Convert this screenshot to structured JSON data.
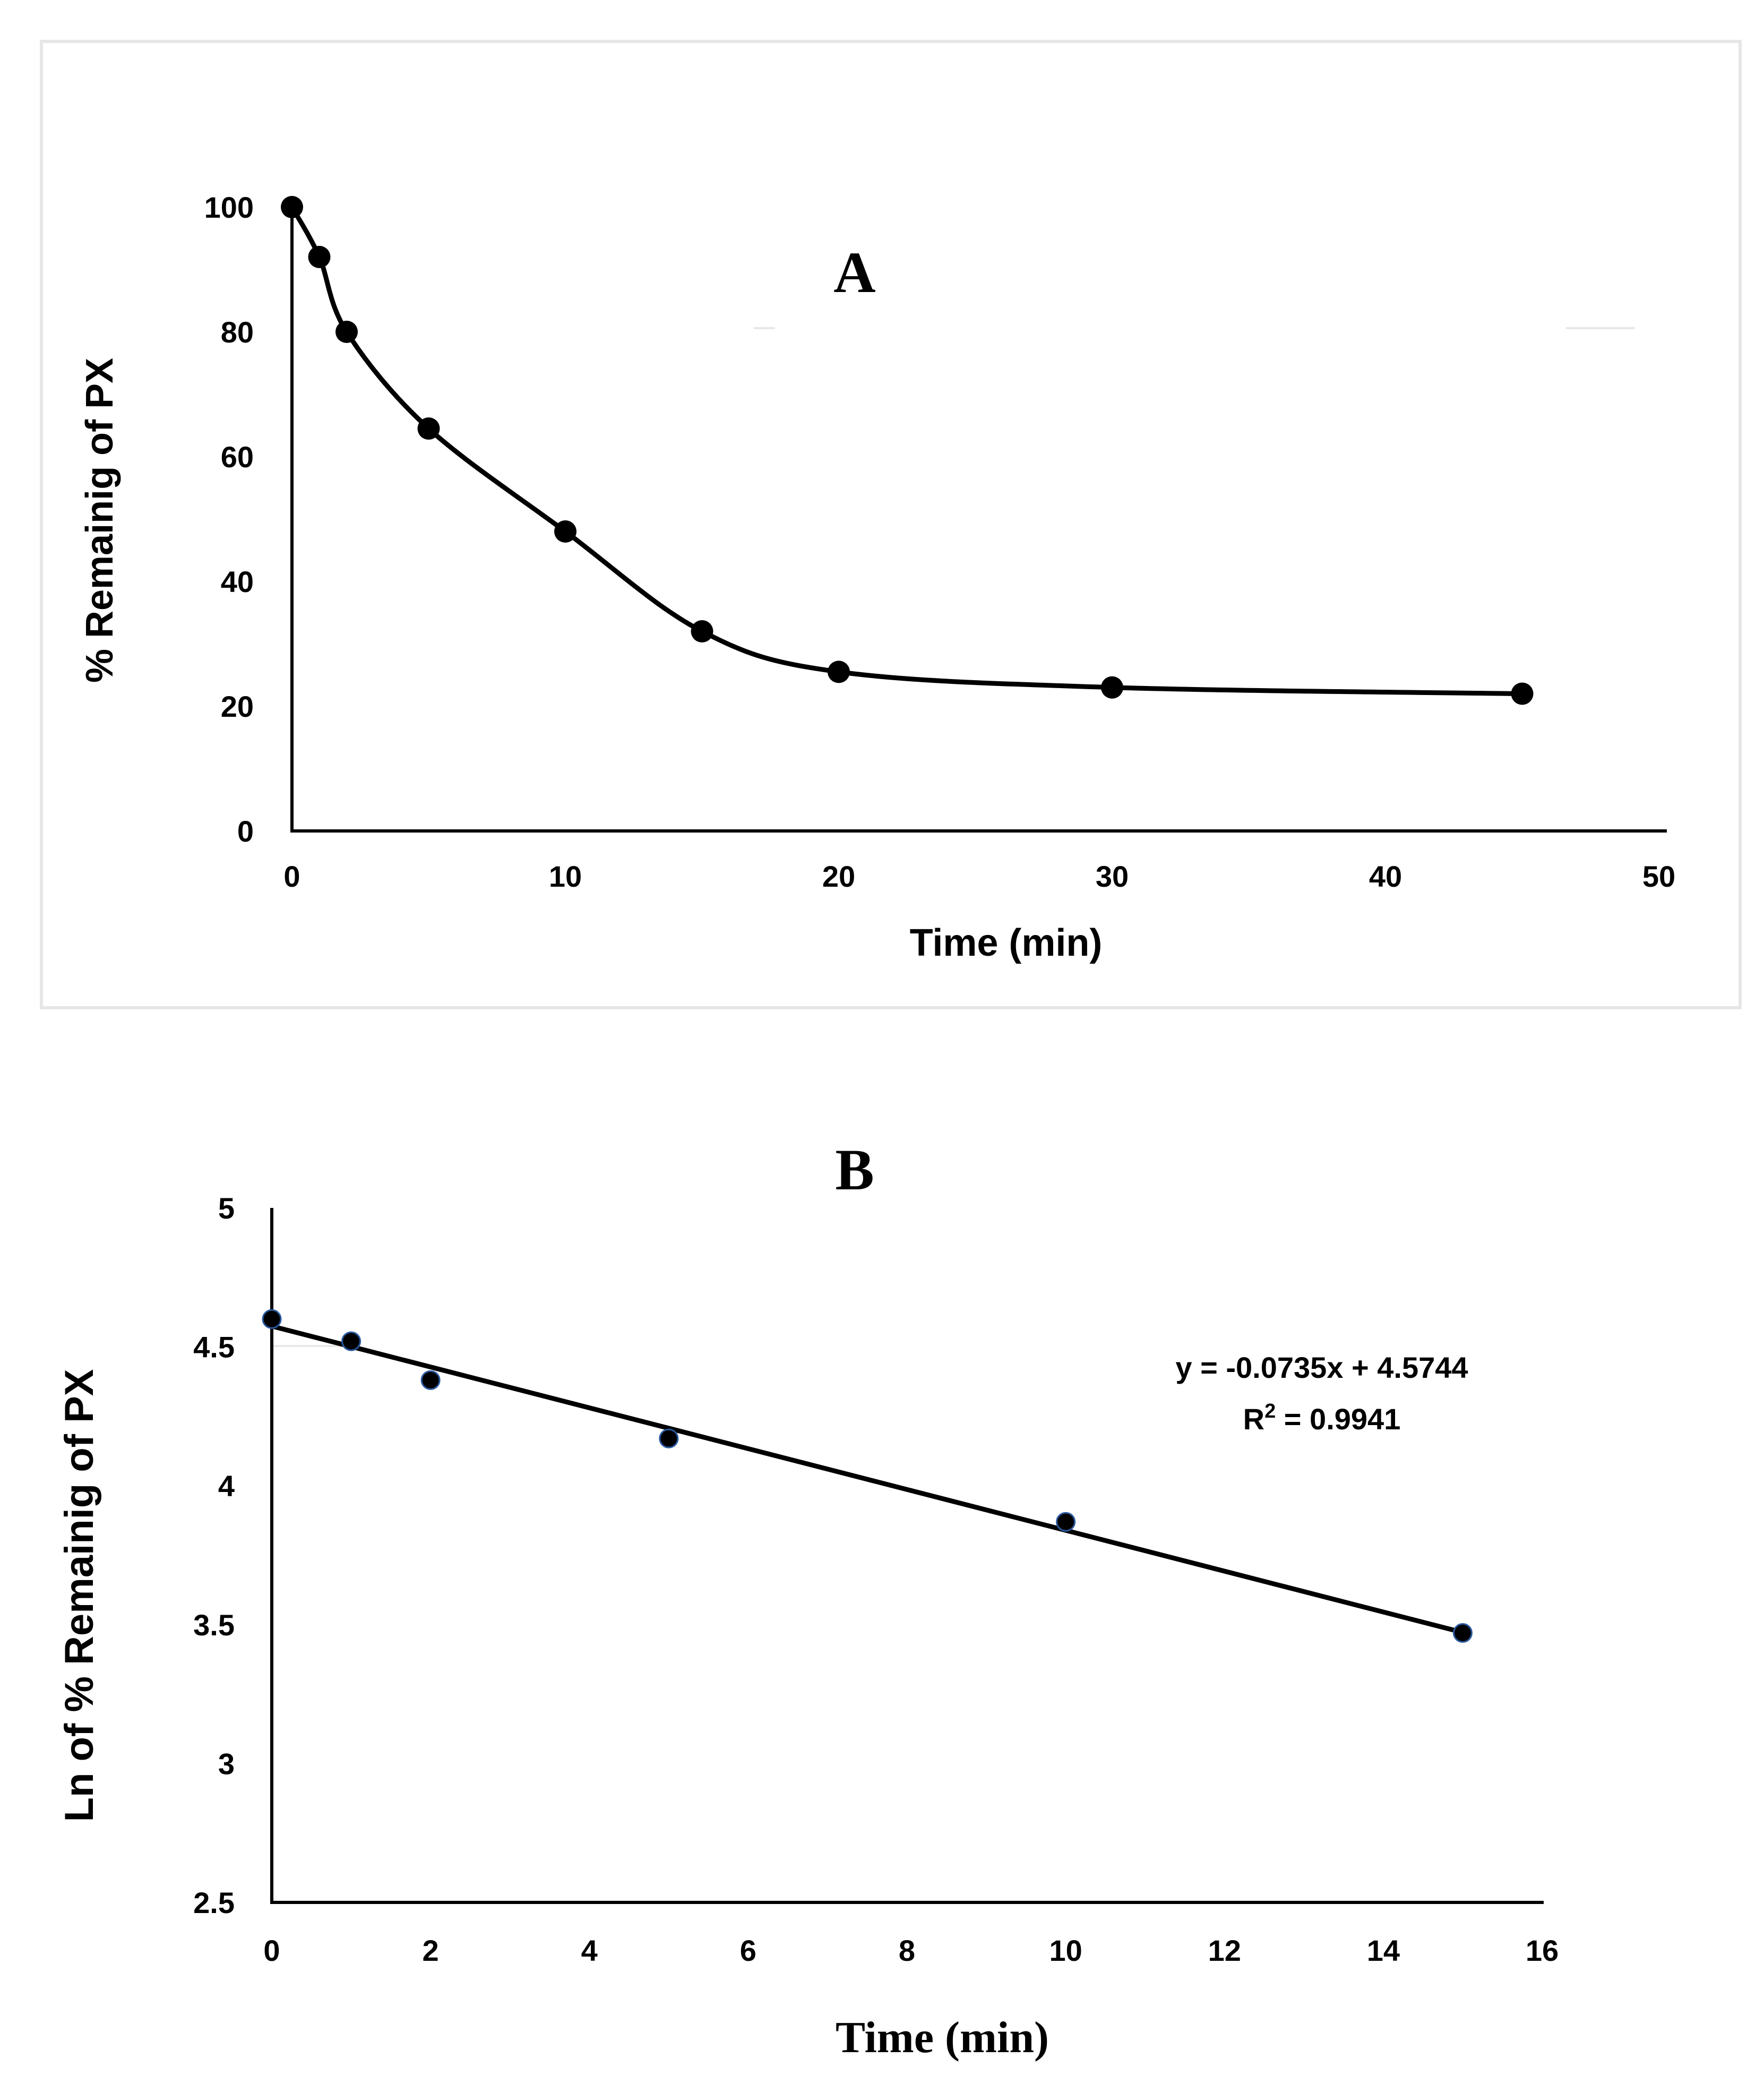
{
  "chart_data": [
    {
      "type": "line",
      "panel_label": "A",
      "xlabel": "Time (min)",
      "ylabel": "% Remainig of PX",
      "xlim": [
        0,
        50
      ],
      "ylim": [
        0,
        100
      ],
      "xticks": [
        0,
        10,
        20,
        30,
        40,
        50
      ],
      "yticks": [
        0,
        20,
        40,
        60,
        80,
        100
      ],
      "x": [
        0,
        1,
        2,
        5,
        10,
        15,
        20,
        30,
        45
      ],
      "y": [
        100,
        92,
        80,
        64.5,
        48,
        32,
        25.5,
        23,
        22
      ],
      "smooth": true
    },
    {
      "type": "scatter",
      "panel_label": "B",
      "xlabel": "Time  (min)",
      "ylabel": "Ln of % Remainig of PX",
      "xlim": [
        0,
        16
      ],
      "ylim": [
        2.5,
        5
      ],
      "xticks": [
        0,
        2,
        4,
        6,
        8,
        10,
        12,
        14,
        16
      ],
      "yticks": [
        2.5,
        3,
        3.5,
        4,
        4.5,
        5
      ],
      "ytick_labels": [
        "2.5",
        "3",
        "3.5",
        "4",
        "4.5",
        "5"
      ],
      "x": [
        0,
        1,
        2,
        5,
        10,
        15
      ],
      "y": [
        4.6,
        4.52,
        4.38,
        4.17,
        3.87,
        3.47
      ],
      "trendline": {
        "slope": -0.0735,
        "intercept": 4.5744
      },
      "equation": "y = -0.0735x + 4.5744",
      "r2_prefix": "R",
      "r2_sup": "2",
      "r2_value": " = 0.9941"
    }
  ]
}
